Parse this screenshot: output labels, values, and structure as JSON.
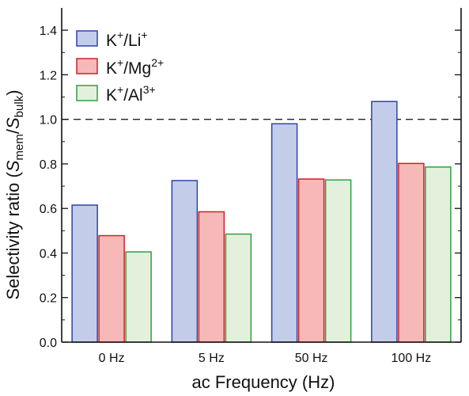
{
  "chart_data": {
    "type": "bar",
    "xlabel": "ac Frequency (Hz)",
    "ylabel": {
      "prefix": "Selectivity ratio (",
      "var1": "S",
      "sub1": "mem",
      "slash": "/",
      "var2": "S",
      "sub2": "bulk",
      "suffix": ")"
    },
    "categories": [
      "0 Hz",
      "5 Hz",
      "50 Hz",
      "100 Hz"
    ],
    "ylim": [
      0,
      1.5
    ],
    "yticks": [
      "0.0",
      "0.2",
      "0.4",
      "0.6",
      "0.8",
      "1.0",
      "1.2",
      "1.4"
    ],
    "reference_line": {
      "y": 1.0,
      "style": "dashed"
    },
    "legend_position": "top-left",
    "series": [
      {
        "name": {
          "base": "K",
          "sup1": "+",
          "mid": "/Li",
          "sup2": "+"
        },
        "fill": "#c3cdea",
        "stroke": "#2f44a6",
        "values": [
          0.615,
          0.725,
          0.98,
          1.08
        ]
      },
      {
        "name": {
          "base": "K",
          "sup1": "+",
          "mid": "/Mg",
          "sup2": "2+"
        },
        "fill": "#f7b8b8",
        "stroke": "#cc2229",
        "values": [
          0.478,
          0.585,
          0.732,
          0.802
        ]
      },
      {
        "name": {
          "base": "K",
          "sup1": "+",
          "mid": "/Al",
          "sup2": "3+"
        },
        "fill": "#e3f1dc",
        "stroke": "#2ea043",
        "values": [
          0.405,
          0.485,
          0.728,
          0.786
        ]
      }
    ]
  }
}
